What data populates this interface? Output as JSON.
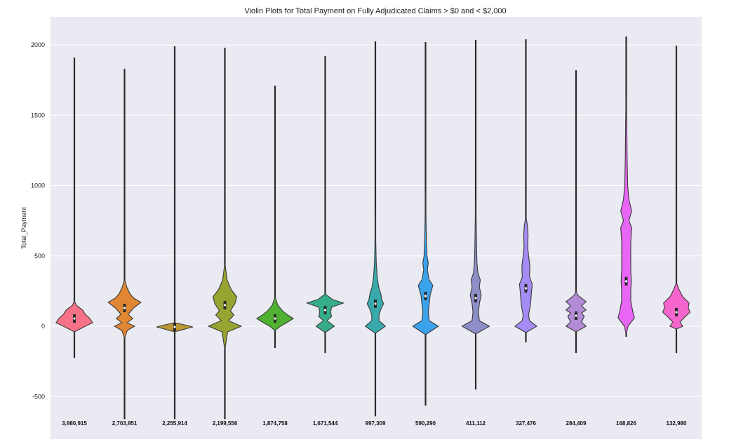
{
  "chart_data": {
    "type": "violin",
    "title": "Violin Plots for Total Payment on Fully Adjudicated Claims > $0 and < $2,000",
    "xlabel": "",
    "ylabel": "Total_Payment",
    "ylim": [
      -750,
      2200
    ],
    "yticks": [
      -500,
      0,
      500,
      1000,
      1500,
      2000
    ],
    "grid": true,
    "categories": [
      "3,980,915",
      "2,703,951",
      "2,255,914",
      "2,199,556",
      "1,874,758",
      "1,671,544",
      "997,309",
      "590,290",
      "411,112",
      "327,476",
      "284,409",
      "168,826",
      "132,980"
    ],
    "colors": [
      "#f77189",
      "#e18632",
      "#bb9832",
      "#97a431",
      "#50b131",
      "#36ad8a",
      "#38aaac",
      "#3ba3ec",
      "#8e8ec8",
      "#a48cf4",
      "#b38bd6",
      "#e866f4",
      "#f565cc"
    ],
    "series": [
      {
        "whisker_min": -225,
        "whisker_max": 1910,
        "median": 55,
        "profile": [
          [
            -40,
            0
          ],
          [
            0,
            0.6
          ],
          [
            25,
            1.0
          ],
          [
            55,
            0.85
          ],
          [
            85,
            0.6
          ],
          [
            115,
            0.45
          ],
          [
            150,
            0.1
          ],
          [
            180,
            0
          ]
        ]
      },
      {
        "whisker_min": -660,
        "whisker_max": 1830,
        "median": 130,
        "profile": [
          [
            -85,
            0
          ],
          [
            -30,
            0.15
          ],
          [
            0,
            0.55
          ],
          [
            25,
            0.15
          ],
          [
            55,
            0.45
          ],
          [
            85,
            0.2
          ],
          [
            130,
            0.5
          ],
          [
            170,
            0.9
          ],
          [
            200,
            0.5
          ],
          [
            230,
            0.3
          ],
          [
            280,
            0.12
          ],
          [
            335,
            0
          ]
        ]
      },
      {
        "whisker_min": -660,
        "whisker_max": 1990,
        "median": -5,
        "profile": [
          [
            -40,
            0
          ],
          [
            -15,
            0.7
          ],
          [
            -5,
            1.0
          ],
          [
            5,
            0.7
          ],
          [
            25,
            0
          ]
        ]
      },
      {
        "whisker_min": -660,
        "whisker_max": 1980,
        "median": 150,
        "profile": [
          [
            -170,
            0
          ],
          [
            -40,
            0.15
          ],
          [
            0,
            0.9
          ],
          [
            40,
            0.2
          ],
          [
            80,
            0.5
          ],
          [
            110,
            0.3
          ],
          [
            160,
            0.55
          ],
          [
            210,
            0.65
          ],
          [
            260,
            0.35
          ],
          [
            330,
            0.12
          ],
          [
            450,
            0
          ]
        ]
      },
      {
        "whisker_min": -155,
        "whisker_max": 1710,
        "median": 55,
        "profile": [
          [
            -30,
            0
          ],
          [
            0,
            0.3
          ],
          [
            30,
            0.7
          ],
          [
            55,
            1.0
          ],
          [
            80,
            0.7
          ],
          [
            110,
            0.4
          ],
          [
            150,
            0.15
          ],
          [
            210,
            0
          ]
        ]
      },
      {
        "whisker_min": -190,
        "whisker_max": 1920,
        "median": 115,
        "profile": [
          [
            -45,
            0
          ],
          [
            0,
            0.5
          ],
          [
            40,
            0.1
          ],
          [
            70,
            0.35
          ],
          [
            100,
            0.3
          ],
          [
            135,
            0.35
          ],
          [
            165,
            1.0
          ],
          [
            190,
            0.4
          ],
          [
            230,
            0
          ]
        ]
      },
      {
        "whisker_min": -640,
        "whisker_max": 2025,
        "median": 160,
        "profile": [
          [
            -50,
            0
          ],
          [
            0,
            0.55
          ],
          [
            40,
            0.2
          ],
          [
            80,
            0.2
          ],
          [
            120,
            0.3
          ],
          [
            160,
            0.45
          ],
          [
            190,
            0.35
          ],
          [
            230,
            0.3
          ],
          [
            280,
            0.18
          ],
          [
            350,
            0.1
          ],
          [
            450,
            0.05
          ],
          [
            600,
            0.02
          ],
          [
            850,
            0
          ]
        ]
      },
      {
        "whisker_min": -565,
        "whisker_max": 2020,
        "median": 215,
        "profile": [
          [
            -60,
            0
          ],
          [
            0,
            0.7
          ],
          [
            40,
            0.2
          ],
          [
            100,
            0.15
          ],
          [
            160,
            0.2
          ],
          [
            220,
            0.25
          ],
          [
            290,
            0.4
          ],
          [
            330,
            0.2
          ],
          [
            400,
            0.1
          ],
          [
            450,
            0.15
          ],
          [
            500,
            0.08
          ],
          [
            600,
            0.05
          ],
          [
            700,
            0.03
          ],
          [
            950,
            0
          ]
        ]
      },
      {
        "whisker_min": -450,
        "whisker_max": 2035,
        "median": 200,
        "profile": [
          [
            -55,
            0
          ],
          [
            0,
            0.75
          ],
          [
            40,
            0.2
          ],
          [
            100,
            0.15
          ],
          [
            160,
            0.2
          ],
          [
            220,
            0.3
          ],
          [
            280,
            0.2
          ],
          [
            330,
            0.25
          ],
          [
            380,
            0.12
          ],
          [
            450,
            0.07
          ],
          [
            550,
            0.05
          ],
          [
            700,
            0.03
          ],
          [
            900,
            0
          ]
        ]
      },
      {
        "whisker_min": -115,
        "whisker_max": 2040,
        "median": 270,
        "profile": [
          [
            -45,
            0
          ],
          [
            0,
            0.6
          ],
          [
            40,
            0.2
          ],
          [
            80,
            0.15
          ],
          [
            150,
            0.25
          ],
          [
            230,
            0.3
          ],
          [
            300,
            0.35
          ],
          [
            350,
            0.2
          ],
          [
            430,
            0.22
          ],
          [
            500,
            0.15
          ],
          [
            560,
            0.1
          ],
          [
            650,
            0.12
          ],
          [
            720,
            0.08
          ],
          [
            780,
            0
          ]
        ]
      },
      {
        "whisker_min": -190,
        "whisker_max": 1820,
        "median": 75,
        "profile": [
          [
            -40,
            0
          ],
          [
            0,
            0.55
          ],
          [
            30,
            0.3
          ],
          [
            70,
            0.45
          ],
          [
            95,
            0.3
          ],
          [
            115,
            0.55
          ],
          [
            145,
            0.3
          ],
          [
            175,
            0.55
          ],
          [
            220,
            0.1
          ],
          [
            250,
            0
          ]
        ]
      },
      {
        "whisker_min": -75,
        "whisker_max": 2060,
        "median": 320,
        "profile": [
          [
            -60,
            0
          ],
          [
            0,
            0.1
          ],
          [
            60,
            0.45
          ],
          [
            110,
            0.35
          ],
          [
            180,
            0.25
          ],
          [
            250,
            0.25
          ],
          [
            320,
            0.28
          ],
          [
            400,
            0.25
          ],
          [
            500,
            0.25
          ],
          [
            600,
            0.25
          ],
          [
            700,
            0.3
          ],
          [
            750,
            0.15
          ],
          [
            820,
            0.3
          ],
          [
            900,
            0.15
          ],
          [
            1000,
            0.08
          ],
          [
            1200,
            0.05
          ],
          [
            1450,
            0.03
          ],
          [
            1650,
            0
          ]
        ]
      },
      {
        "whisker_min": -190,
        "whisker_max": 1995,
        "median": 100,
        "profile": [
          [
            -20,
            0
          ],
          [
            0,
            0.35
          ],
          [
            30,
            0.2
          ],
          [
            70,
            0.5
          ],
          [
            100,
            0.75
          ],
          [
            130,
            0.65
          ],
          [
            165,
            0.7
          ],
          [
            210,
            0.35
          ],
          [
            260,
            0.15
          ],
          [
            310,
            0
          ]
        ]
      }
    ]
  }
}
